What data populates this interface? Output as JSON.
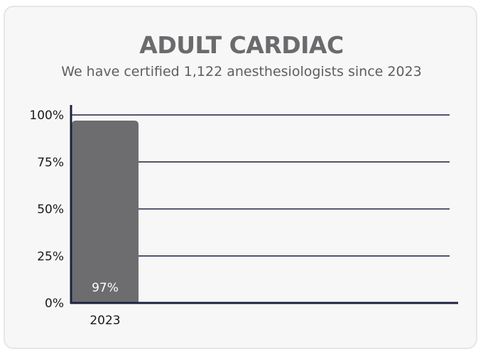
{
  "chart_data": {
    "type": "bar",
    "title": "ADULT CARDIAC",
    "subtitle": "We have certified 1,122 anesthesiologists since 2023",
    "categories": [
      "2023"
    ],
    "values": [
      97
    ],
    "data_labels": [
      "97%"
    ],
    "ylim": [
      0,
      100
    ],
    "yticks": [
      "0%",
      "25%",
      "50%",
      "75%",
      "100%"
    ],
    "ytick_values": [
      0,
      25,
      50,
      75,
      100
    ],
    "grid": true,
    "bar_color": "#6d6d70",
    "axis_color": "#1d2140",
    "grid_color": "#1d2140"
  }
}
